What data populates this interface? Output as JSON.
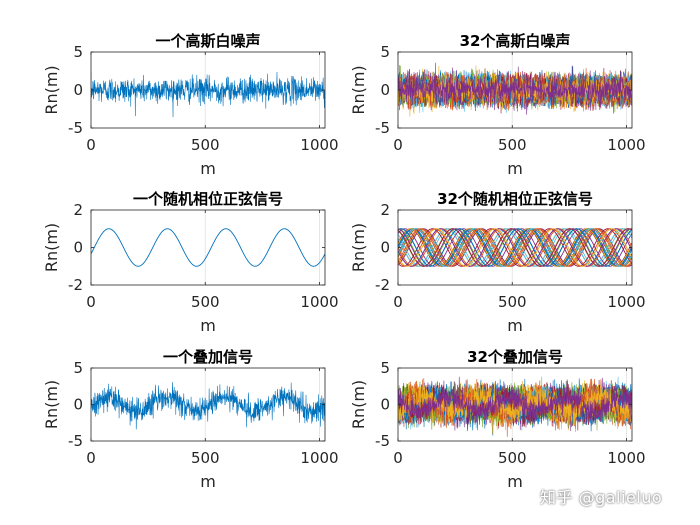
{
  "watermark": "知乎 @galieluo",
  "colors": [
    "#0072BD",
    "#D95319",
    "#EDB120",
    "#7E2F8E",
    "#77AC30",
    "#4DBEEE",
    "#A2142F"
  ],
  "chart_data": [
    {
      "id": "p1",
      "type": "line",
      "title": "一个高斯白噪声",
      "xlabel": "m",
      "ylabel": "Rn(m)",
      "xlim": [
        0,
        1024
      ],
      "ylim": [
        -5,
        5
      ],
      "xticks": [
        0,
        500,
        1000
      ],
      "yticks": [
        -5,
        0,
        5
      ],
      "n_series": 1,
      "signal": "noise",
      "noise_sd": 0.85,
      "sine_amp": 0,
      "period": 256,
      "grid": false
    },
    {
      "id": "p2",
      "type": "line",
      "title": "32个高斯白噪声",
      "xlabel": "m",
      "ylabel": "Rn(m)",
      "xlim": [
        0,
        1024
      ],
      "ylim": [
        -5,
        5
      ],
      "xticks": [
        0,
        500,
        1000
      ],
      "yticks": [
        -5,
        0,
        5
      ],
      "n_series": 32,
      "signal": "noise",
      "noise_sd": 0.85,
      "sine_amp": 0,
      "period": 256,
      "grid": false
    },
    {
      "id": "p3",
      "type": "line",
      "title": "一个随机相位正弦信号",
      "xlabel": "m",
      "ylabel": "Rn(m)",
      "xlim": [
        0,
        1024
      ],
      "ylim": [
        -2,
        2
      ],
      "xticks": [
        0,
        500,
        1000
      ],
      "yticks": [
        -2,
        0,
        2
      ],
      "n_series": 1,
      "signal": "sine",
      "noise_sd": 0,
      "sine_amp": 1,
      "period": 256,
      "grid": false
    },
    {
      "id": "p4",
      "type": "line",
      "title": "32个随机相位正弦信号",
      "xlabel": "m",
      "ylabel": "Rn(m)",
      "xlim": [
        0,
        1024
      ],
      "ylim": [
        -2,
        2
      ],
      "xticks": [
        0,
        500,
        1000
      ],
      "yticks": [
        -2,
        0,
        2
      ],
      "n_series": 32,
      "signal": "sine",
      "noise_sd": 0,
      "sine_amp": 1,
      "period": 256,
      "grid": false
    },
    {
      "id": "p5",
      "type": "line",
      "title": "一个叠加信号",
      "xlabel": "m",
      "ylabel": "Rn(m)",
      "xlim": [
        0,
        1024
      ],
      "ylim": [
        -5,
        5
      ],
      "xticks": [
        0,
        500,
        1000
      ],
      "yticks": [
        -5,
        0,
        5
      ],
      "n_series": 1,
      "signal": "sum",
      "noise_sd": 0.85,
      "sine_amp": 1,
      "period": 256,
      "grid": false
    },
    {
      "id": "p6",
      "type": "line",
      "title": "32个叠加信号",
      "xlabel": "m",
      "ylabel": "Rn(m)",
      "xlim": [
        0,
        1024
      ],
      "ylim": [
        -5,
        5
      ],
      "xticks": [
        0,
        500,
        1000
      ],
      "yticks": [
        -5,
        0,
        5
      ],
      "n_series": 32,
      "signal": "sum",
      "noise_sd": 0.85,
      "sine_amp": 1,
      "period": 256,
      "grid": false
    }
  ]
}
